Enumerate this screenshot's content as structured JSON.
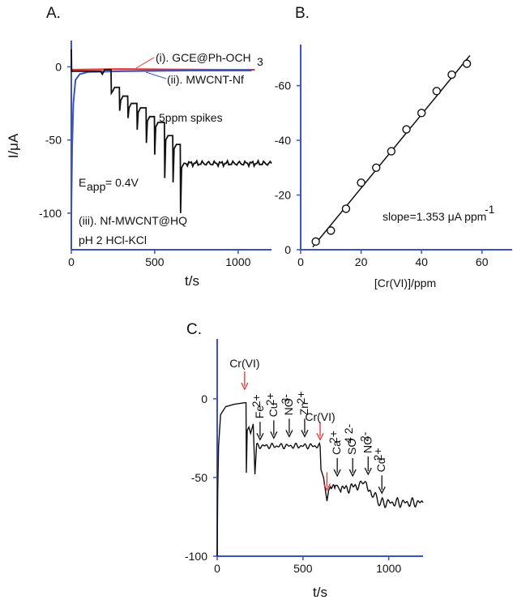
{
  "panels": {
    "a": "A.",
    "b": "B.",
    "c": "C."
  },
  "chart_data": [
    {
      "panel": "A.",
      "type": "line",
      "xlabel": "t/s",
      "ylabel": "I/μA",
      "xlim": [
        0,
        1200
      ],
      "ylim": [
        -125,
        18
      ],
      "xticks": [
        0,
        500,
        1000
      ],
      "yticks": [
        0,
        -50,
        -100
      ],
      "grid": false,
      "series": [
        {
          "name": "(i). GCE@Ph-OCH3",
          "color": "#e8322f",
          "points": [
            [
              0,
              -2
            ],
            [
              300,
              -1.5
            ],
            [
              600,
              -1.8
            ],
            [
              900,
              -2
            ],
            [
              1100,
              -2
            ]
          ]
        },
        {
          "name": "(ii). MWCNT-Nf",
          "color": "#3b52c4",
          "points": [
            [
              0,
              -100
            ],
            [
              5,
              -55
            ],
            [
              12,
              -25
            ],
            [
              25,
              -9
            ],
            [
              50,
              -5
            ],
            [
              100,
              -3.5
            ],
            [
              300,
              -3
            ],
            [
              700,
              -2.5
            ],
            [
              1080,
              -2.5
            ]
          ]
        },
        {
          "name": "(iii). Nf-MWCNT@HQ",
          "color": "#111111",
          "steps": [
            [
              0,
              -3
            ],
            [
              180,
              -2
            ],
            [
              240,
              -14
            ],
            [
              290,
              -20
            ],
            [
              340,
              -25
            ],
            [
              395,
              -28
            ],
            [
              450,
              -34
            ],
            [
              500,
              -38
            ],
            [
              560,
              -47
            ],
            [
              610,
              -53
            ],
            [
              655,
              -66
            ],
            [
              1200,
              -66
            ]
          ],
          "spikes": [
            [
              180,
              -4
            ],
            [
              240,
              -18
            ],
            [
              290,
              -30
            ],
            [
              340,
              -35
            ],
            [
              395,
              -43
            ],
            [
              450,
              -52
            ],
            [
              500,
              -60
            ],
            [
              560,
              -76
            ],
            [
              610,
              -79
            ],
            [
              655,
              -100
            ]
          ]
        }
      ],
      "annotations": {
        "legend_i": "(i). GCE@Ph-OCH",
        "legend_i_sub": "3",
        "legend_ii": "(ii). MWCNT-Nf",
        "spikes": "5ppm spikes",
        "eapp": "E",
        "eapp_sub": "app",
        "eapp_val": "= 0.4V",
        "label_iii": "(iii). Nf-MWCNT@HQ",
        "ph": "pH 2 HCl-KCl"
      }
    },
    {
      "panel": "B.",
      "type": "scatter",
      "xlabel": "[Cr(VI)]/ppm",
      "ylabel": "",
      "xlim": [
        0,
        70
      ],
      "ylim": [
        0,
        -75
      ],
      "xticks": [
        0,
        20,
        40,
        60
      ],
      "yticks": [
        0,
        -20,
        -40,
        -60
      ],
      "grid": false,
      "x": [
        5,
        10,
        15,
        20,
        25,
        30,
        35,
        40,
        45,
        50,
        55
      ],
      "y": [
        -3,
        -7,
        -15,
        -24.5,
        -30,
        -36,
        -44,
        -50,
        -58,
        -64,
        -68
      ],
      "fit": {
        "x": [
          4,
          56
        ],
        "y": [
          -1,
          -71
        ]
      },
      "annotation": "slope=1.353 μA ppm",
      "annotation_sup": "-1"
    },
    {
      "panel": "C.",
      "type": "line",
      "xlabel": "t/s",
      "ylabel": "",
      "xlim": [
        0,
        1200
      ],
      "ylim": [
        -100,
        38
      ],
      "xticks": [
        0,
        500,
        1000
      ],
      "yticks": [
        0,
        -50,
        -100
      ],
      "grid": false,
      "segments": [
        [
          0,
          -100
        ],
        [
          3,
          -60
        ],
        [
          8,
          -30
        ],
        [
          20,
          -10
        ],
        [
          50,
          -5
        ],
        [
          100,
          -3.5
        ],
        [
          160,
          -2.5
        ],
        [
          168,
          -2.5
        ],
        [
          170,
          -47
        ],
        [
          175,
          -20
        ],
        [
          185,
          -18
        ],
        [
          195,
          -22
        ],
        [
          210,
          -16
        ],
        [
          220,
          -48
        ],
        [
          230,
          -30
        ],
        [
          600,
          -30
        ],
        [
          605,
          -45
        ],
        [
          620,
          -50
        ],
        [
          640,
          -65
        ],
        [
          650,
          -58
        ],
        [
          660,
          -54
        ],
        [
          690,
          -55
        ],
        [
          700,
          -55
        ],
        [
          720,
          -57
        ],
        [
          760,
          -57
        ],
        [
          820,
          -55
        ],
        [
          870,
          -53
        ],
        [
          900,
          -60
        ],
        [
          950,
          -66
        ],
        [
          1200,
          -66
        ]
      ],
      "spikes": [
        [
          170,
          -47
        ],
        [
          220,
          -48
        ],
        [
          645,
          -80
        ]
      ],
      "arrows": [
        {
          "label": "Cr(VI)",
          "sup": "",
          "t": 160,
          "tip_y": 6,
          "color": "red",
          "label_y": 20
        },
        {
          "label": "Cr(VI)",
          "sup": "",
          "t": 600,
          "tip_y": -26,
          "color": "red",
          "label_y": -14
        },
        {
          "label": "Fe",
          "sup": "2+",
          "t": 250,
          "tip_y": -26,
          "color": "black"
        },
        {
          "label": "Cu",
          "sup": "2+",
          "t": 330,
          "tip_y": -25,
          "color": "black"
        },
        {
          "label": "NO",
          "sup": "3-",
          "t": 420,
          "tip_y": -24,
          "color": "black"
        },
        {
          "label": "Zn",
          "sup": "2+",
          "t": 510,
          "tip_y": -24,
          "color": "black"
        },
        {
          "label": "Ca",
          "sup": "2+",
          "t": 700,
          "tip_y": -49,
          "color": "black"
        },
        {
          "label": "SO",
          "sup": "4 2-",
          "t": 790,
          "tip_y": -49,
          "color": "black"
        },
        {
          "label": "NO",
          "sup": "2-",
          "t": 880,
          "tip_y": -48,
          "color": "black"
        },
        {
          "label": "Cd",
          "sup": "2+",
          "t": 960,
          "tip_y": -60,
          "color": "black"
        }
      ],
      "red_arrow_extra": {
        "t": 640,
        "tip_y": -58,
        "color": "red"
      }
    }
  ]
}
